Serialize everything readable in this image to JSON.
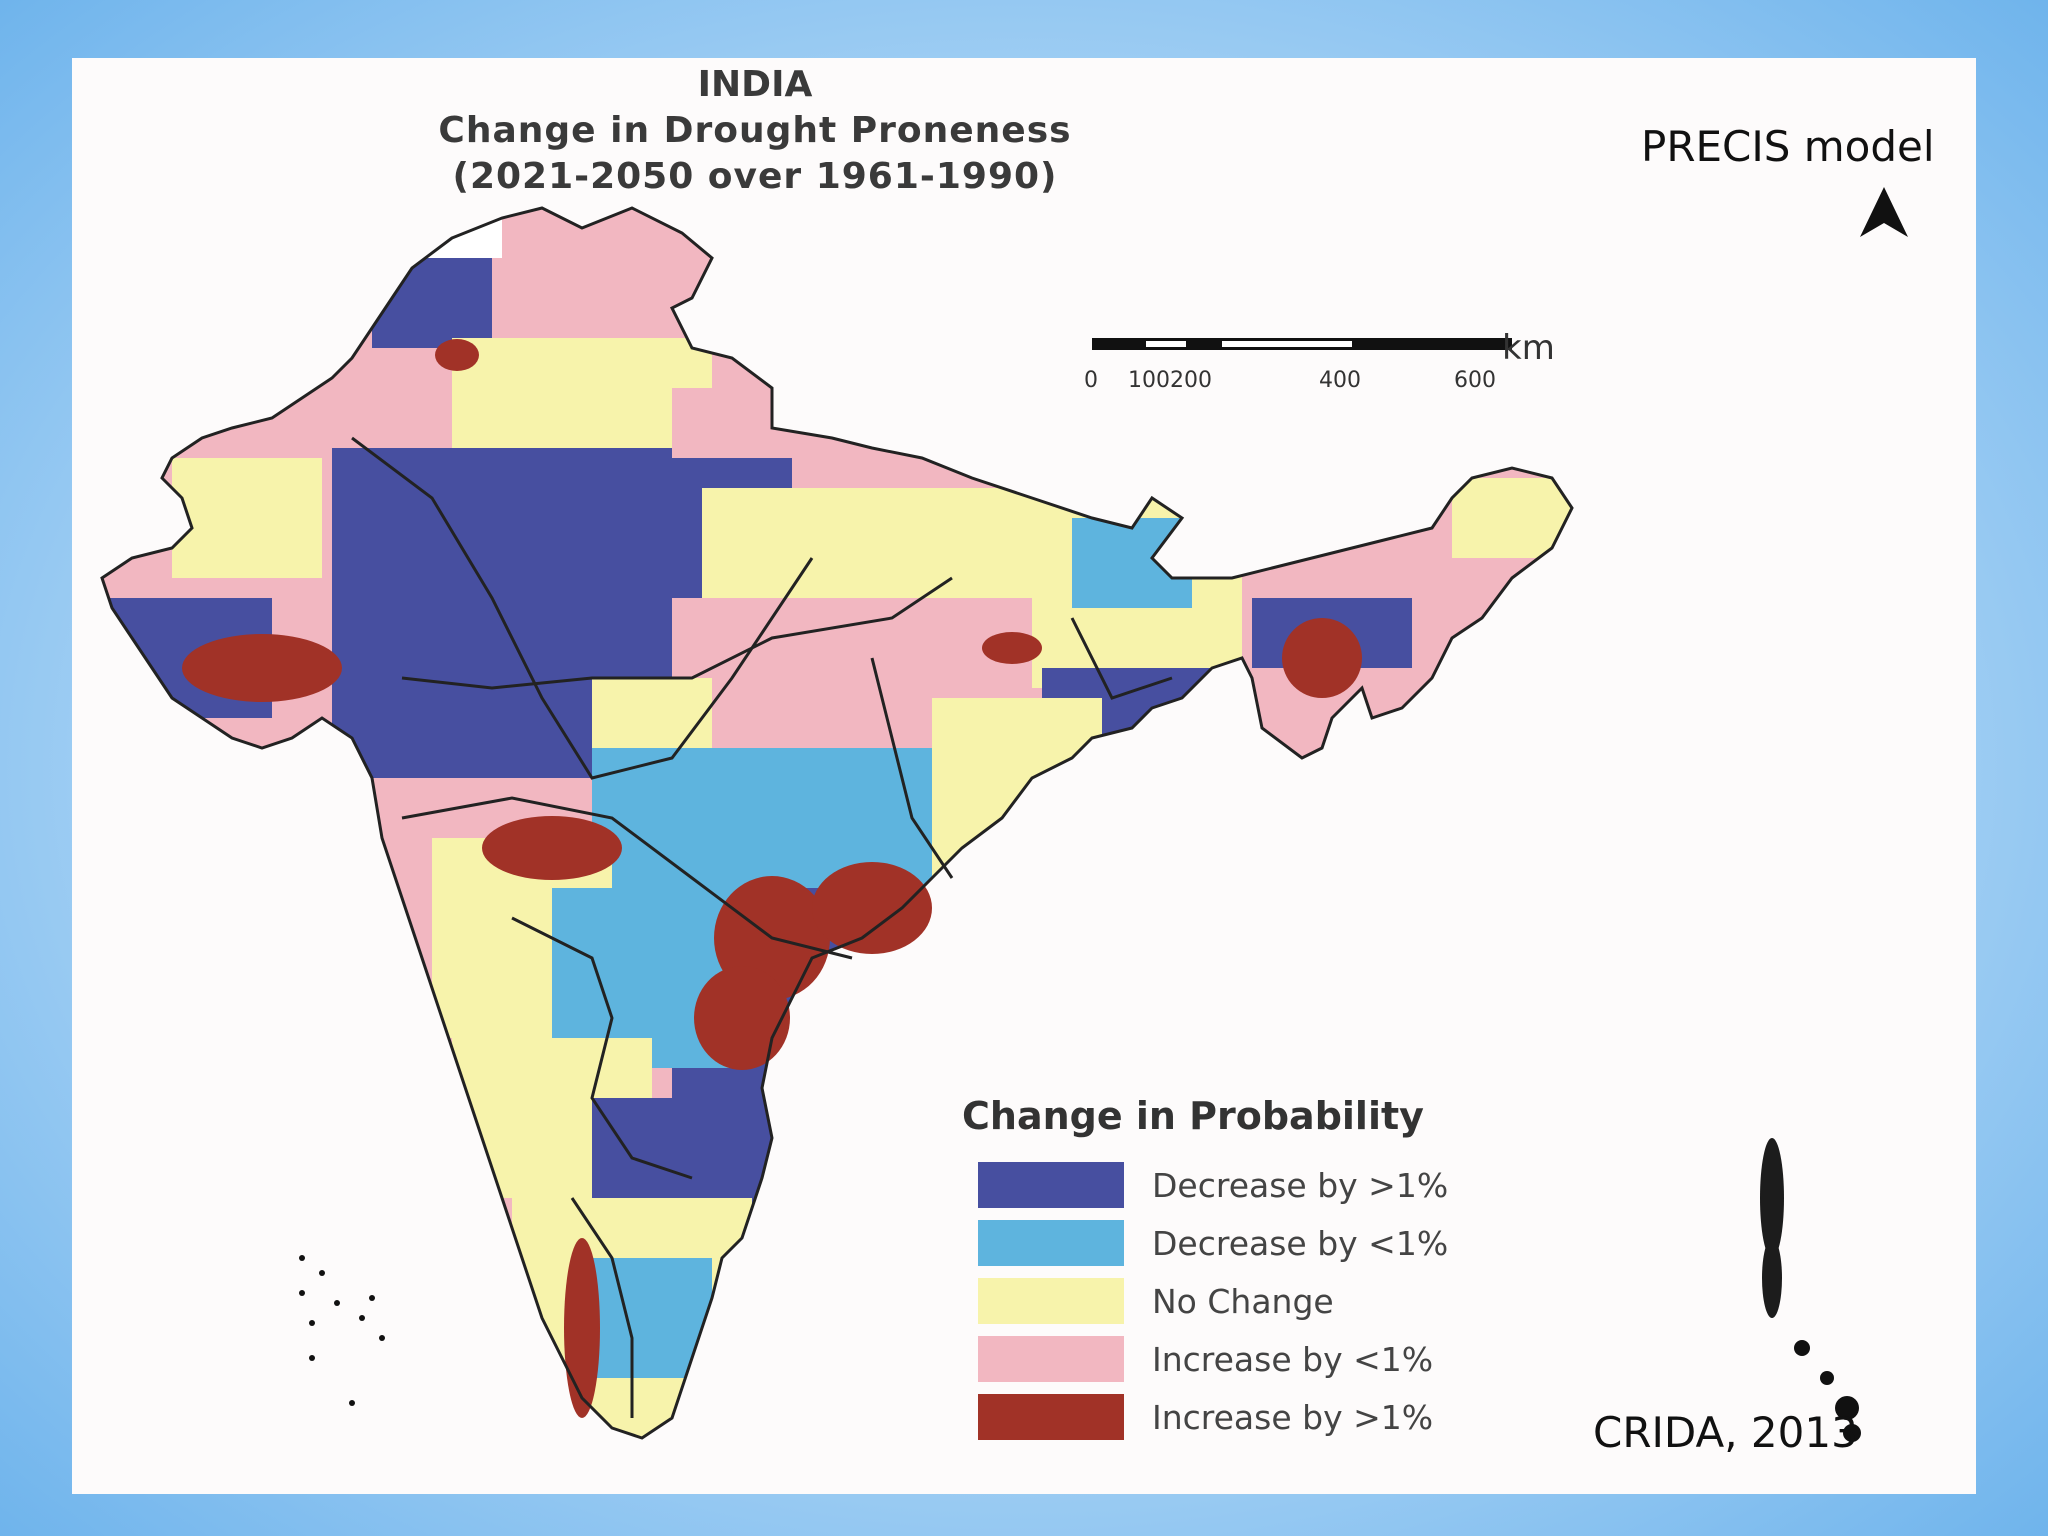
{
  "title": {
    "line1": "INDIA",
    "line2": "Change in Drought Proneness",
    "line3": "(2021-2050 over 1961-1990)"
  },
  "model_label": "PRECIS model",
  "source_label": "CRIDA, 2013",
  "north_arrow_icon": "north-arrow-icon",
  "scale": {
    "unit": "km",
    "ticks": [
      "0",
      "100",
      "200",
      "400",
      "600"
    ]
  },
  "legend": {
    "title": "Change in Probability",
    "items": [
      {
        "label": "Decrease by >1%",
        "color": "#474fa0"
      },
      {
        "label": "Decrease by <1%",
        "color": "#5eb4de"
      },
      {
        "label": "No Change",
        "color": "#f7f3ab"
      },
      {
        "label": "Increase by <1%",
        "color": "#f2b7c1"
      },
      {
        "label": "Increase by >1%",
        "color": "#a13227"
      }
    ]
  }
}
